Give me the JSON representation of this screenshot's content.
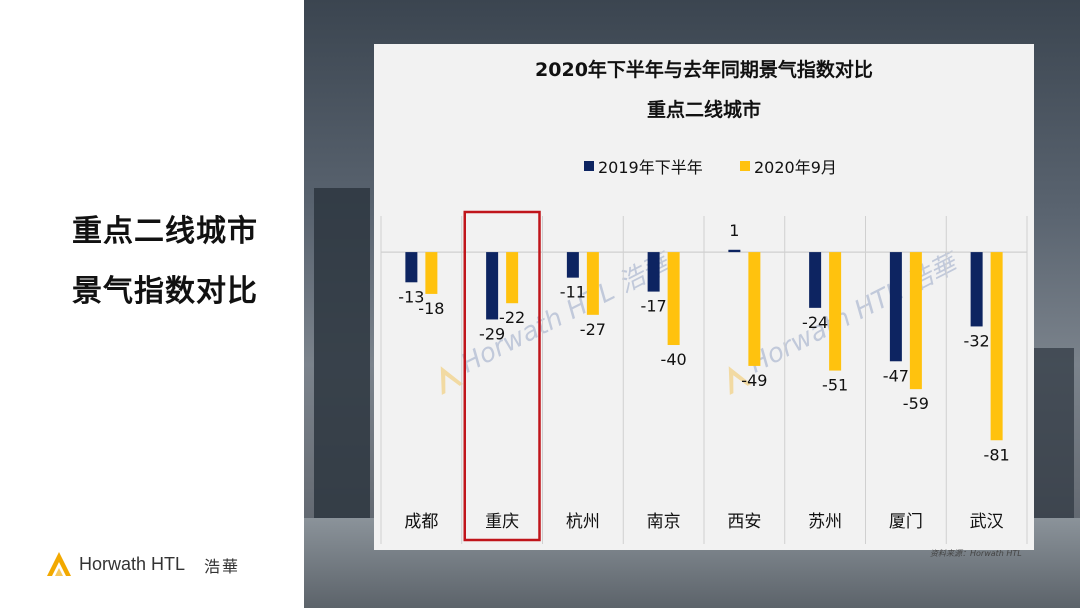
{
  "side_titles": [
    "重点二线城市",
    "景气指数对比"
  ],
  "logo": {
    "text": "Horwath HTL",
    "cn": "浩華"
  },
  "watermark": {
    "text": "Horwath HTL 浩華"
  },
  "source_text": "资料来源：Horwath HTL",
  "colors": {
    "series1": "#0d2461",
    "series2": "#ffc20e",
    "highlight": "#c0151b",
    "axis": "#d0d0d0",
    "watermark": "#9aa8c8",
    "logo_gold": "#f2a900"
  },
  "chart_data": {
    "type": "bar",
    "title": "2020年下半年与去年同期景气指数对比",
    "subtitle": "重点二线城市",
    "categories": [
      "成都",
      "重庆",
      "杭州",
      "南京",
      "西安",
      "苏州",
      "厦门",
      "武汉"
    ],
    "series": [
      {
        "name": "2019年下半年",
        "values": [
          -13,
          -29,
          -11,
          -17,
          1,
          -24,
          -47,
          -32
        ]
      },
      {
        "name": "2020年9月",
        "values": [
          -18,
          -22,
          -27,
          -40,
          -49,
          -51,
          -59,
          -81
        ]
      }
    ],
    "data_labels": [
      [
        "-13",
        "-29",
        "-11",
        "-17",
        "1",
        "-24",
        "-47",
        "-32"
      ],
      [
        "-18",
        "-22",
        "-27",
        "-40",
        "-49",
        "-51",
        "-59",
        "-81"
      ]
    ],
    "ylim": [
      -105,
      22
    ],
    "highlight_category": "重庆",
    "legend_position": "top",
    "grid": false
  }
}
